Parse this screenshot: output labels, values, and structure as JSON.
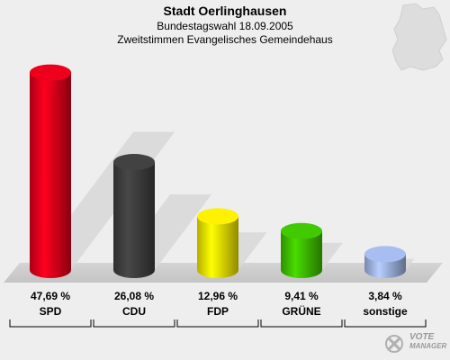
{
  "header": {
    "title": "Stadt Oerlinghausen",
    "subtitle": "Bundestagswahl 18.09.2005",
    "subtitle2": "Zweitstimmen Evangelisches Gemeindehaus"
  },
  "logo": {
    "line1": "VOTE",
    "line2": "MANAGER"
  },
  "chart_data": {
    "type": "bar",
    "title": "Stadt Oerlinghausen",
    "categories": [
      "SPD",
      "CDU",
      "FDP",
      "GRÜNE",
      "sonstige"
    ],
    "values": [
      47.69,
      26.08,
      12.96,
      9.41,
      3.84
    ],
    "value_labels": [
      "47,69 %",
      "26,08 %",
      "12,96 %",
      "9,41 %",
      "3,84 %"
    ],
    "colors": [
      "#e3001b",
      "#3f3f3f",
      "#f2e600",
      "#3fc000",
      "#a0b4e6"
    ],
    "ylim": [
      0,
      50
    ],
    "grid": false
  }
}
